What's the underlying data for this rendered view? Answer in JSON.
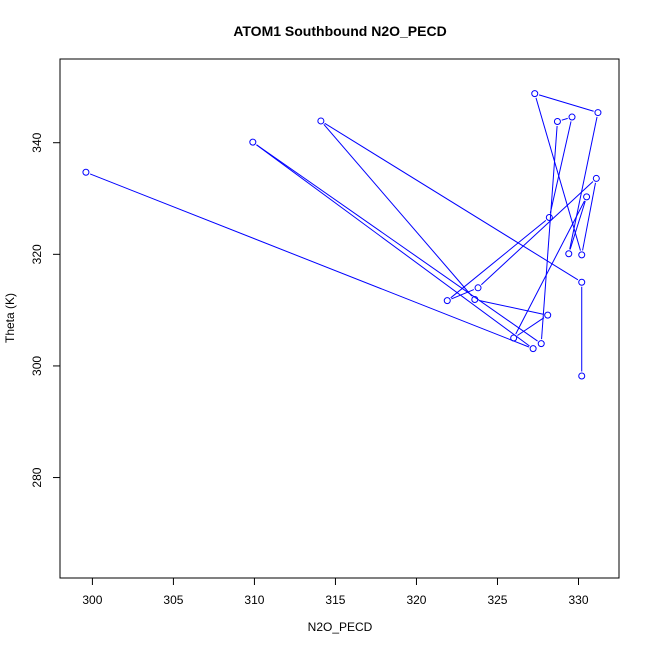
{
  "chart_data": {
    "type": "line",
    "title": "ATOM1 Southbound N2O_PECD",
    "xlabel": "N2O_PECD",
    "ylabel": "Theta (K)",
    "xlim": [
      298,
      332.5
    ],
    "ylim": [
      262,
      355
    ],
    "x_ticks": [
      300,
      305,
      310,
      315,
      320,
      325,
      330
    ],
    "y_ticks": [
      280,
      300,
      320,
      340
    ],
    "grid": false,
    "series": [
      {
        "color": "#0000ff",
        "marker": "open-circle",
        "points": [
          {
            "x": 330.2,
            "y": 298.2
          },
          {
            "x": 330.2,
            "y": 315.0
          },
          {
            "x": 314.1,
            "y": 343.9
          },
          {
            "x": 323.6,
            "y": 311.9
          },
          {
            "x": 328.1,
            "y": 309.1
          },
          {
            "x": 326.0,
            "y": 305.0
          },
          {
            "x": 330.5,
            "y": 330.3
          },
          {
            "x": 329.4,
            "y": 320.1
          },
          {
            "x": 331.2,
            "y": 345.4
          },
          {
            "x": 327.3,
            "y": 348.8
          },
          {
            "x": 330.2,
            "y": 319.9
          },
          {
            "x": 331.1,
            "y": 333.6
          },
          {
            "x": 323.8,
            "y": 314.0
          },
          {
            "x": 321.9,
            "y": 311.7
          },
          {
            "x": 328.2,
            "y": 326.6
          },
          {
            "x": 329.6,
            "y": 344.6
          },
          {
            "x": 328.7,
            "y": 343.8
          },
          {
            "x": 327.7,
            "y": 304.0
          },
          {
            "x": 309.9,
            "y": 340.1
          },
          {
            "x": 327.2,
            "y": 303.1
          },
          {
            "x": 299.6,
            "y": 334.7
          }
        ]
      }
    ]
  }
}
